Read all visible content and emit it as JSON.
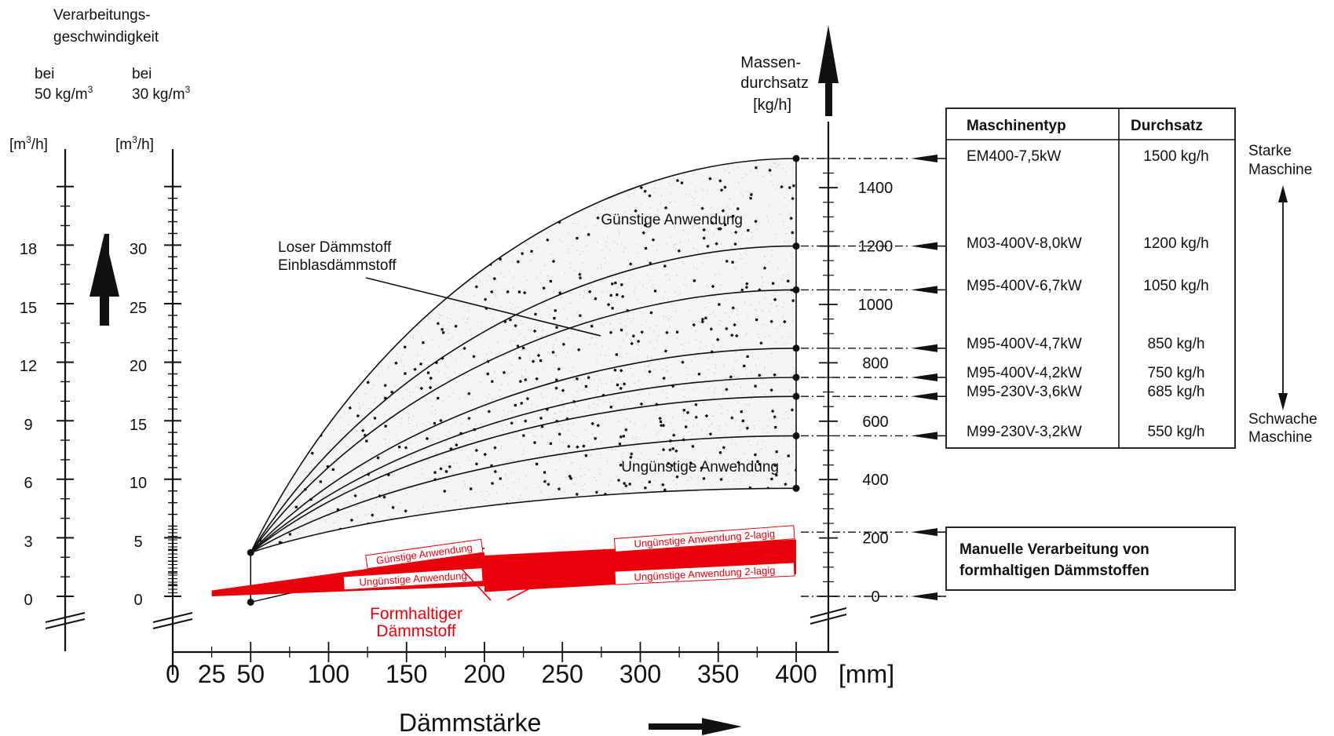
{
  "chart_data": {
    "type": "area",
    "header": {
      "speed_line1": "Verarbeitungs-",
      "speed_line2": "geschwindigkeit",
      "bei": "bei",
      "density50": "50 kg/m",
      "density30": "30 kg/m",
      "sup3": "3",
      "unit_m3h_a": "[m",
      "unit_m3h_b": "/h]"
    },
    "axis_50": {
      "ticks": [
        "0",
        "3",
        "6",
        "9",
        "12",
        "15",
        "18"
      ]
    },
    "axis_30": {
      "ticks": [
        "0",
        "5",
        "10",
        "15",
        "20",
        "25",
        "30"
      ]
    },
    "mass_axis": {
      "title_line1": "Massen-",
      "title_line2": "durchsatz",
      "unit": "[kg/h]",
      "ticks": [
        "0",
        "200",
        "400",
        "600",
        "800",
        "1000",
        "1200",
        "1400"
      ],
      "ylim": [
        0,
        1500
      ]
    },
    "x_axis": {
      "ticks": [
        "0",
        "25",
        "50",
        "100",
        "150",
        "200",
        "250",
        "300",
        "350",
        "400"
      ],
      "tick_values": [
        0,
        25,
        50,
        100,
        150,
        200,
        250,
        300,
        350,
        400
      ],
      "unit": "[mm]",
      "label": "Dämmstärke",
      "xlim": [
        0,
        400
      ]
    },
    "curves": {
      "start": {
        "x": 50,
        "y": 150
      },
      "end_x": 400,
      "end_values": [
        1500,
        1200,
        1050,
        850,
        750,
        685,
        550,
        370
      ]
    },
    "formhaltig": {
      "seg1_x": [
        25,
        200
      ],
      "seg1_y": [
        20,
        85
      ],
      "seg2_x": [
        200,
        400
      ],
      "seg2_y": [
        15,
        85
      ],
      "seg2_top": [
        115,
        220
      ],
      "thin_line_x": [
        50,
        200
      ],
      "thin_line_y": [
        -20,
        165
      ]
    },
    "labels": {
      "guenstig": "Günstige Anwendung",
      "unguenstig": "Ungünstige Anwendung",
      "loser_line1": "Loser Dämmstoff",
      "loser_line2": "Einblasdämmstoff",
      "red_guenstig": "Günstige Anwendung",
      "red_unguenstig": "Ungünstige Anwendung",
      "red_2lagig": "Ungünstige Anwendung 2-lagig",
      "formhaltig_line1": "Formhaltiger",
      "formhaltig_line2": "Dämmstoff"
    },
    "table": {
      "headers": [
        "Maschinentyp",
        "Durchsatz"
      ],
      "rows": [
        {
          "name": "EM400-7,5kW",
          "value": "1500 kg/h",
          "kgh": 1500
        },
        {
          "name": "M03-400V-8,0kW",
          "value": "1200 kg/h",
          "kgh": 1200
        },
        {
          "name": "M95-400V-6,7kW",
          "value": "1050 kg/h",
          "kgh": 1050
        },
        {
          "name": "M95-400V-4,7kW",
          "value": "850 kg/h",
          "kgh": 850
        },
        {
          "name": "M95-400V-4,2kW",
          "value": "750 kg/h",
          "kgh": 750
        },
        {
          "name": "M95-230V-3,6kW",
          "value": "685 kg/h",
          "kgh": 685
        },
        {
          "name": "M99-230V-3,2kW",
          "value": "550 kg/h",
          "kgh": 550
        }
      ]
    },
    "strong_line1": "Starke",
    "strong_line2": "Maschine",
    "weak_line1": "Schwache",
    "weak_line2": "Maschine",
    "manual_line1": "Manuelle Verarbeitung von",
    "manual_line2": "formhaltigen Dämmstoffen",
    "manual_arrow_levels": [
      220,
      0
    ],
    "colors": {
      "line": "#111111",
      "red": "#e8000b",
      "stipple": "#cfcfcf"
    }
  }
}
